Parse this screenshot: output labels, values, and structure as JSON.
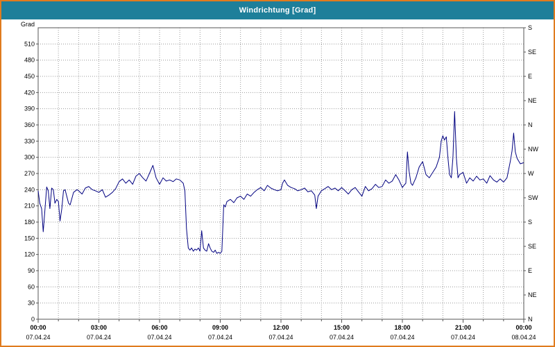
{
  "window": {
    "title": "Windrichtung [Grad]"
  },
  "colors": {
    "border": "#e07b1e",
    "titlebar_bg": "#1e7f9a",
    "titlebar_text": "#ffffff",
    "plot_bg": "#ffffff",
    "grid": "#9a9a9a",
    "axis": "#555555",
    "text": "#000000",
    "line": "#000080"
  },
  "chart_data": {
    "type": "line",
    "title": "Windrichtung [Grad]",
    "ylabel": "Grad",
    "xlabel": "",
    "ylim": [
      0,
      540
    ],
    "xlim_hours": [
      0,
      24
    ],
    "y_tick_step": 30,
    "y_ticks": [
      0,
      30,
      60,
      90,
      120,
      150,
      180,
      210,
      240,
      270,
      300,
      330,
      360,
      390,
      420,
      450,
      480,
      510
    ],
    "right_axis_labels": [
      {
        "deg": 540,
        "label": "S"
      },
      {
        "deg": 495,
        "label": "SE"
      },
      {
        "deg": 450,
        "label": "E"
      },
      {
        "deg": 405,
        "label": "NE"
      },
      {
        "deg": 360,
        "label": "N"
      },
      {
        "deg": 315,
        "label": "NW"
      },
      {
        "deg": 270,
        "label": "W"
      },
      {
        "deg": 225,
        "label": "SW"
      },
      {
        "deg": 180,
        "label": "S"
      },
      {
        "deg": 135,
        "label": "SE"
      },
      {
        "deg": 90,
        "label": "E"
      },
      {
        "deg": 45,
        "label": "NE"
      },
      {
        "deg": 0,
        "label": "N"
      }
    ],
    "x_ticks": [
      {
        "hour": 0,
        "time": "00:00",
        "date": "07.04.24"
      },
      {
        "hour": 3,
        "time": "03:00",
        "date": "07.04.24"
      },
      {
        "hour": 6,
        "time": "06:00",
        "date": "07.04.24"
      },
      {
        "hour": 9,
        "time": "09:00",
        "date": "07.04.24"
      },
      {
        "hour": 12,
        "time": "12:00",
        "date": "07.04.24"
      },
      {
        "hour": 15,
        "time": "15:00",
        "date": "07.04.24"
      },
      {
        "hour": 18,
        "time": "18:00",
        "date": "07.04.24"
      },
      {
        "hour": 21,
        "time": "21:00",
        "date": "07.04.24"
      },
      {
        "hour": 24,
        "time": "00:00",
        "date": "08.04.24"
      }
    ],
    "grid": {
      "vertical_every_hours": 1,
      "horizontal_every_deg": 30,
      "style": "dotted"
    },
    "legend": "none",
    "series": [
      {
        "name": "Windrichtung",
        "color": "#000080",
        "points": [
          [
            0.0,
            238
          ],
          [
            0.08,
            215
          ],
          [
            0.17,
            205
          ],
          [
            0.25,
            162
          ],
          [
            0.33,
            200
          ],
          [
            0.42,
            245
          ],
          [
            0.5,
            238
          ],
          [
            0.58,
            205
          ],
          [
            0.67,
            243
          ],
          [
            0.75,
            240
          ],
          [
            0.83,
            215
          ],
          [
            0.92,
            222
          ],
          [
            1.0,
            218
          ],
          [
            1.08,
            182
          ],
          [
            1.17,
            205
          ],
          [
            1.25,
            238
          ],
          [
            1.33,
            240
          ],
          [
            1.5,
            215
          ],
          [
            1.58,
            212
          ],
          [
            1.75,
            235
          ],
          [
            1.92,
            240
          ],
          [
            2.0,
            238
          ],
          [
            2.17,
            232
          ],
          [
            2.33,
            243
          ],
          [
            2.5,
            246
          ],
          [
            2.67,
            240
          ],
          [
            2.83,
            238
          ],
          [
            3.0,
            235
          ],
          [
            3.17,
            240
          ],
          [
            3.33,
            226
          ],
          [
            3.5,
            230
          ],
          [
            3.67,
            235
          ],
          [
            3.83,
            242
          ],
          [
            4.0,
            255
          ],
          [
            4.17,
            260
          ],
          [
            4.33,
            252
          ],
          [
            4.5,
            258
          ],
          [
            4.67,
            250
          ],
          [
            4.83,
            265
          ],
          [
            5.0,
            270
          ],
          [
            5.17,
            262
          ],
          [
            5.33,
            256
          ],
          [
            5.5,
            270
          ],
          [
            5.67,
            285
          ],
          [
            5.83,
            262
          ],
          [
            6.0,
            250
          ],
          [
            6.17,
            262
          ],
          [
            6.33,
            256
          ],
          [
            6.5,
            258
          ],
          [
            6.67,
            255
          ],
          [
            6.83,
            260
          ],
          [
            7.0,
            258
          ],
          [
            7.17,
            252
          ],
          [
            7.25,
            238
          ],
          [
            7.33,
            168
          ],
          [
            7.42,
            132
          ],
          [
            7.5,
            128
          ],
          [
            7.58,
            132
          ],
          [
            7.67,
            126
          ],
          [
            7.75,
            130
          ],
          [
            7.83,
            128
          ],
          [
            7.92,
            132
          ],
          [
            8.0,
            126
          ],
          [
            8.08,
            164
          ],
          [
            8.17,
            132
          ],
          [
            8.25,
            128
          ],
          [
            8.33,
            126
          ],
          [
            8.42,
            140
          ],
          [
            8.5,
            132
          ],
          [
            8.58,
            126
          ],
          [
            8.67,
            124
          ],
          [
            8.75,
            128
          ],
          [
            8.83,
            122
          ],
          [
            8.92,
            124
          ],
          [
            9.0,
            122
          ],
          [
            9.08,
            126
          ],
          [
            9.17,
            212
          ],
          [
            9.25,
            208
          ],
          [
            9.33,
            218
          ],
          [
            9.5,
            222
          ],
          [
            9.67,
            216
          ],
          [
            9.83,
            225
          ],
          [
            10.0,
            228
          ],
          [
            10.17,
            222
          ],
          [
            10.33,
            232
          ],
          [
            10.5,
            228
          ],
          [
            10.67,
            235
          ],
          [
            10.83,
            240
          ],
          [
            11.0,
            244
          ],
          [
            11.17,
            238
          ],
          [
            11.33,
            248
          ],
          [
            11.5,
            243
          ],
          [
            11.67,
            240
          ],
          [
            11.83,
            238
          ],
          [
            12.0,
            240
          ],
          [
            12.08,
            252
          ],
          [
            12.17,
            258
          ],
          [
            12.33,
            248
          ],
          [
            12.5,
            244
          ],
          [
            12.67,
            242
          ],
          [
            12.83,
            238
          ],
          [
            13.0,
            240
          ],
          [
            13.17,
            243
          ],
          [
            13.33,
            236
          ],
          [
            13.5,
            238
          ],
          [
            13.67,
            230
          ],
          [
            13.75,
            205
          ],
          [
            13.83,
            228
          ],
          [
            14.0,
            238
          ],
          [
            14.17,
            242
          ],
          [
            14.33,
            246
          ],
          [
            14.5,
            240
          ],
          [
            14.67,
            243
          ],
          [
            14.83,
            238
          ],
          [
            15.0,
            244
          ],
          [
            15.17,
            238
          ],
          [
            15.33,
            232
          ],
          [
            15.5,
            240
          ],
          [
            15.67,
            244
          ],
          [
            15.83,
            236
          ],
          [
            16.0,
            228
          ],
          [
            16.17,
            246
          ],
          [
            16.33,
            238
          ],
          [
            16.5,
            242
          ],
          [
            16.67,
            250
          ],
          [
            16.83,
            244
          ],
          [
            17.0,
            246
          ],
          [
            17.17,
            258
          ],
          [
            17.33,
            252
          ],
          [
            17.5,
            256
          ],
          [
            17.67,
            268
          ],
          [
            17.83,
            258
          ],
          [
            18.0,
            244
          ],
          [
            18.08,
            248
          ],
          [
            18.17,
            252
          ],
          [
            18.25,
            310
          ],
          [
            18.33,
            275
          ],
          [
            18.42,
            252
          ],
          [
            18.5,
            248
          ],
          [
            18.67,
            262
          ],
          [
            18.83,
            282
          ],
          [
            19.0,
            292
          ],
          [
            19.17,
            268
          ],
          [
            19.33,
            262
          ],
          [
            19.5,
            272
          ],
          [
            19.67,
            282
          ],
          [
            19.83,
            300
          ],
          [
            19.92,
            330
          ],
          [
            20.0,
            340
          ],
          [
            20.08,
            332
          ],
          [
            20.17,
            338
          ],
          [
            20.25,
            300
          ],
          [
            20.33,
            268
          ],
          [
            20.42,
            262
          ],
          [
            20.5,
            300
          ],
          [
            20.58,
            385
          ],
          [
            20.67,
            298
          ],
          [
            20.75,
            262
          ],
          [
            20.83,
            268
          ],
          [
            21.0,
            272
          ],
          [
            21.17,
            252
          ],
          [
            21.33,
            262
          ],
          [
            21.5,
            256
          ],
          [
            21.67,
            265
          ],
          [
            21.83,
            258
          ],
          [
            22.0,
            260
          ],
          [
            22.17,
            252
          ],
          [
            22.33,
            266
          ],
          [
            22.5,
            258
          ],
          [
            22.67,
            254
          ],
          [
            22.83,
            260
          ],
          [
            23.0,
            254
          ],
          [
            23.17,
            262
          ],
          [
            23.33,
            292
          ],
          [
            23.42,
            312
          ],
          [
            23.5,
            345
          ],
          [
            23.58,
            310
          ],
          [
            23.67,
            298
          ],
          [
            23.83,
            288
          ],
          [
            24.0,
            290
          ]
        ]
      }
    ]
  }
}
